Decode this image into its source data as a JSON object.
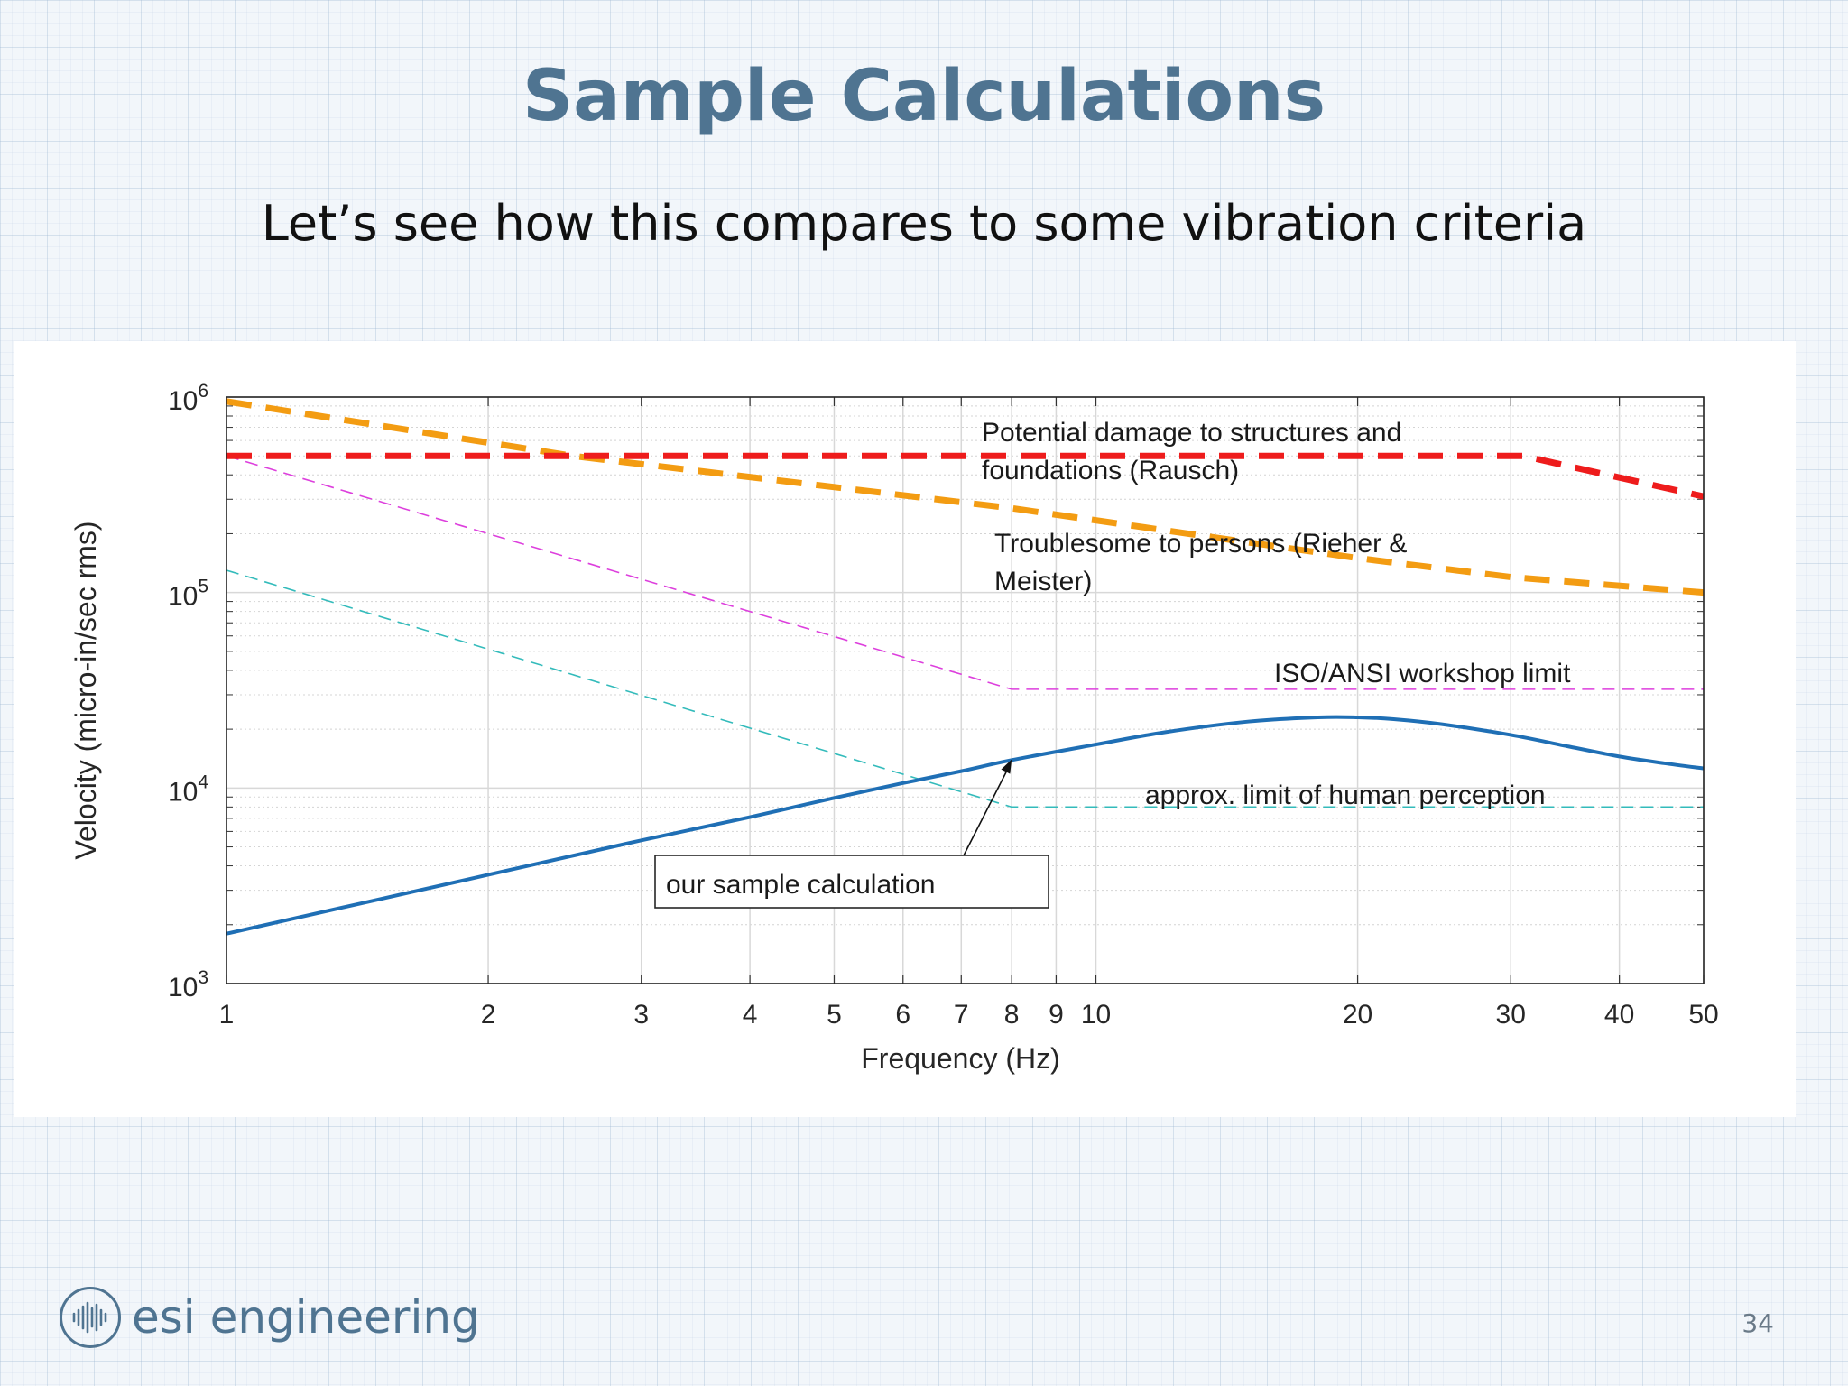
{
  "slide": {
    "title": "Sample Calculations",
    "subtitle": "Let’s see how this compares to some vibration criteria",
    "logo_text": "esi engineering",
    "logo_icon": "sound-wave-icon",
    "page_number": "34"
  },
  "chart_data": {
    "type": "line",
    "title": "",
    "xlabel": "Frequency (Hz)",
    "ylabel": "Velocity (micro-in/sec rms)",
    "xscale": "log",
    "yscale": "log",
    "xlim": [
      1,
      50
    ],
    "ylim": [
      1000,
      1000000
    ],
    "grid": true,
    "minor_grid": true,
    "xticks": [
      1,
      2,
      3,
      4,
      5,
      6,
      7,
      8,
      9,
      10,
      20,
      30,
      40,
      50
    ],
    "xtick_labels": [
      "1",
      "2",
      "3",
      "4",
      "5",
      "6",
      "7",
      "8",
      "9",
      "10",
      "20",
      "30",
      "40",
      "50"
    ],
    "yticks": [
      1000,
      10000,
      100000,
      1000000
    ],
    "ytick_labels": [
      {
        "base": "10",
        "exp": "3"
      },
      {
        "base": "10",
        "exp": "4"
      },
      {
        "base": "10",
        "exp": "5"
      },
      {
        "base": "10",
        "exp": "6"
      }
    ],
    "series": [
      {
        "id": "damage",
        "color": "#ee1c1c",
        "style": "thick-dashed",
        "x": [
          1,
          31,
          50
        ],
        "y": [
          500000,
          500000,
          310000
        ]
      },
      {
        "id": "troublesome",
        "color": "#f39c12",
        "style": "thick-dashed",
        "x": [
          1,
          2.5,
          8,
          20,
          30,
          50
        ],
        "y": [
          950000,
          500000,
          270000,
          150000,
          120000,
          100000
        ]
      },
      {
        "id": "workshop",
        "color": "#dd3fdd",
        "style": "thin-dashed",
        "x": [
          1,
          8,
          50
        ],
        "y": [
          500000,
          32000,
          32000
        ]
      },
      {
        "id": "perception",
        "color": "#33bbbb",
        "style": "thin-dashed",
        "x": [
          1,
          8,
          50
        ],
        "y": [
          130000,
          8000,
          8000
        ]
      },
      {
        "id": "sample",
        "color": "#1f6fb5",
        "style": "solid",
        "x": [
          1,
          2,
          3,
          4,
          5,
          6,
          7,
          8,
          10,
          12,
          15,
          18,
          20,
          22,
          25,
          30,
          35,
          40,
          45,
          50
        ],
        "y": [
          1800,
          3600,
          5400,
          7100,
          8900,
          10600,
          12200,
          13900,
          16700,
          19300,
          21900,
          23000,
          23000,
          22500,
          21200,
          18700,
          16300,
          14500,
          13400,
          12600
        ]
      }
    ],
    "annotations": [
      {
        "id": "damage-label",
        "lines": [
          "Potential damage to structures and",
          "foundations (Rausch)"
        ]
      },
      {
        "id": "troublesome-label",
        "lines": [
          "Troublesome to persons (Rieher &",
          "Meister)"
        ]
      },
      {
        "id": "workshop-label",
        "lines": [
          "ISO/ANSI workshop limit"
        ]
      },
      {
        "id": "perception-label",
        "lines": [
          "approx. limit of human perception"
        ]
      },
      {
        "id": "sample-label",
        "lines": [
          "our sample calculation"
        ],
        "boxed": true,
        "arrow_to": {
          "x": 8,
          "y": 14000
        }
      }
    ]
  }
}
